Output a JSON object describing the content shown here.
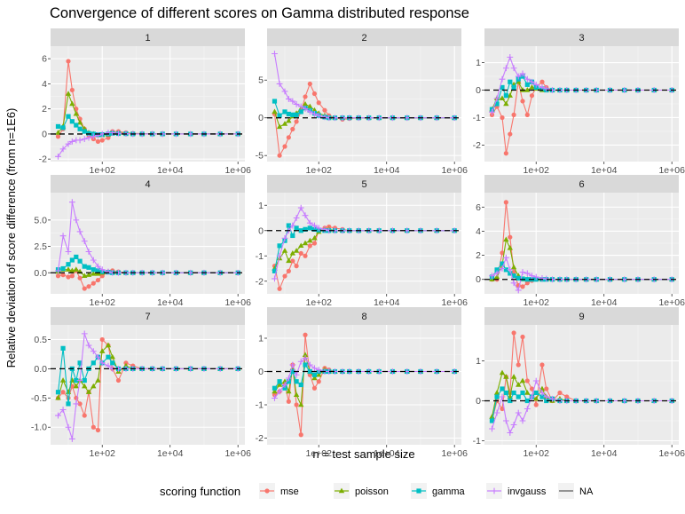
{
  "chart_data": {
    "type": "line",
    "title": "Convergence of different scores on Gamma distributed response",
    "xlabel": "n = test sample size",
    "ylabel": "Relative deviation of score difference (from n=1E6)",
    "x_scale": "log10",
    "x_ticks": [
      {
        "value": 100,
        "label": "1e+02"
      },
      {
        "value": 10000,
        "label": "1e+04"
      },
      {
        "value": 1000000,
        "label": "1e+06"
      }
    ],
    "reference_line": {
      "y": 0,
      "style": "dashed"
    },
    "legend": {
      "title": "scoring function",
      "position": "bottom",
      "entries": [
        {
          "name": "mse",
          "color": "#F8766D",
          "marker": "circle"
        },
        {
          "name": "poisson",
          "color": "#7CAE00",
          "marker": "triangle"
        },
        {
          "name": "gamma",
          "color": "#00BFC4",
          "marker": "square"
        },
        {
          "name": "invgauss",
          "color": "#C77CFF",
          "marker": "plus"
        },
        {
          "name": "NA",
          "color": "#555555",
          "marker": "none"
        }
      ]
    },
    "series_names": [
      "mse",
      "poisson",
      "gamma",
      "invgauss"
    ],
    "x_values": [
      5,
      7,
      10,
      13,
      17,
      22,
      30,
      40,
      55,
      75,
      100,
      150,
      200,
      300,
      500,
      800,
      1500,
      3000,
      6000,
      15000,
      40000,
      100000,
      300000,
      1000000
    ],
    "panels": [
      {
        "label": "1",
        "ylim": [
          -2.2,
          7
        ],
        "yticks": [
          -2,
          0,
          2,
          4,
          6
        ],
        "series": {
          "mse": [
            -0.2,
            0.4,
            5.8,
            3.5,
            2.0,
            1.2,
            0.4,
            -0.1,
            -0.4,
            -0.6,
            -0.5,
            -0.3,
            0.2,
            0.2,
            0.1,
            0.05,
            0.02,
            0.01,
            0,
            0,
            0,
            0,
            0,
            0
          ],
          "poisson": [
            0.1,
            0.6,
            3.2,
            2.4,
            1.6,
            0.9,
            0.4,
            0.1,
            0.0,
            -0.1,
            -0.1,
            -0.05,
            0.1,
            0.1,
            0.05,
            0.02,
            0,
            0,
            0,
            0,
            0,
            0,
            0,
            0
          ],
          "gamma": [
            0.6,
            0.5,
            1.4,
            1.0,
            0.7,
            0.4,
            0.2,
            0.05,
            0.0,
            -0.05,
            -0.05,
            0,
            0.05,
            0.03,
            0.02,
            0,
            0,
            0,
            0,
            0,
            0,
            0,
            0,
            0
          ],
          "invgauss": [
            -1.8,
            -1.2,
            -0.8,
            -0.6,
            -0.5,
            -0.5,
            -0.4,
            -0.3,
            -0.2,
            -0.1,
            0,
            0.1,
            0.1,
            0.05,
            0.02,
            0,
            0,
            0,
            0,
            0,
            0,
            0,
            0,
            0
          ]
        }
      },
      {
        "label": "2",
        "ylim": [
          -5.8,
          9.5
        ],
        "yticks": [
          -5,
          0,
          5
        ],
        "series": {
          "mse": [
            0.5,
            -5.0,
            -3.8,
            -2.6,
            -1.5,
            -0.5,
            0.8,
            2.8,
            4.5,
            3.2,
            2.0,
            1.0,
            0.3,
            0,
            -0.2,
            -0.1,
            0,
            0,
            0,
            0,
            0,
            0,
            0,
            0
          ],
          "poisson": [
            0.8,
            -1.2,
            -0.8,
            -0.4,
            0.2,
            0.6,
            1.2,
            1.8,
            1.5,
            1.0,
            0.6,
            0.3,
            0.1,
            0,
            0,
            0,
            0,
            0,
            0,
            0,
            0,
            0,
            0,
            0
          ],
          "gamma": [
            2.2,
            0.3,
            0.8,
            0.5,
            0.4,
            0.4,
            0.8,
            1.3,
            1.0,
            0.6,
            0.3,
            0.1,
            0,
            0,
            0,
            0,
            0,
            0,
            0,
            0,
            0,
            0,
            0,
            0
          ],
          "invgauss": [
            8.5,
            4.5,
            3.5,
            2.5,
            2.2,
            1.8,
            1.5,
            1.2,
            0.8,
            0.5,
            0.3,
            0.1,
            0,
            0,
            0,
            0,
            0,
            0,
            0,
            0,
            0,
            0,
            0,
            0
          ]
        }
      },
      {
        "label": "3",
        "ylim": [
          -2.6,
          1.6
        ],
        "yticks": [
          -2,
          -1,
          0,
          1
        ],
        "series": {
          "mse": [
            -0.9,
            -0.6,
            -1.0,
            -2.3,
            -1.6,
            -0.9,
            0.3,
            -0.4,
            -0.9,
            -0.2,
            0.1,
            0.3,
            0.1,
            0,
            0,
            0,
            0,
            0,
            0,
            0,
            0,
            0,
            0,
            0
          ],
          "poisson": [
            -0.7,
            -0.3,
            -0.3,
            -0.5,
            -0.2,
            0.2,
            0.3,
            0.0,
            0.0,
            0.1,
            0.05,
            0,
            0,
            0,
            0,
            0,
            0,
            0,
            0,
            0,
            0,
            0,
            0,
            0
          ],
          "gamma": [
            -0.7,
            -0.5,
            0.1,
            -0.2,
            0.3,
            0.1,
            0.4,
            0.5,
            0.2,
            0.3,
            0.1,
            0.05,
            0,
            0,
            0,
            0,
            0,
            0,
            0,
            0,
            0,
            0,
            0,
            0
          ],
          "invgauss": [
            -0.8,
            -0.3,
            0.4,
            0.8,
            1.2,
            0.8,
            0.5,
            0.6,
            0.4,
            0.3,
            0.2,
            0.1,
            0.05,
            0,
            0,
            0,
            0,
            0,
            0,
            0,
            0,
            0,
            0,
            0
          ]
        }
      },
      {
        "label": "4",
        "ylim": [
          -2.0,
          7.6
        ],
        "yticks": [
          0.0,
          2.5,
          5.0
        ],
        "series": {
          "mse": [
            -0.3,
            -0.2,
            -0.4,
            -0.3,
            0.2,
            -0.5,
            -1.5,
            -1.3,
            -1.0,
            -0.7,
            -0.3,
            0.1,
            0.2,
            0.1,
            0,
            0,
            0,
            0,
            0,
            0,
            0,
            0,
            0,
            0
          ],
          "poisson": [
            0.1,
            0.3,
            0.3,
            0.2,
            0.3,
            0.1,
            -0.3,
            -0.2,
            -0.1,
            -0.1,
            0,
            0.05,
            0.05,
            0,
            0,
            0,
            0,
            0,
            0,
            0,
            0,
            0,
            0,
            0
          ],
          "gamma": [
            0.3,
            0.4,
            0.8,
            1.2,
            1.5,
            1.1,
            0.6,
            0.5,
            0.3,
            0.2,
            0.1,
            0.05,
            0,
            0,
            0,
            0,
            0,
            0,
            0,
            0,
            0,
            0,
            0,
            0
          ],
          "invgauss": [
            0.2,
            3.5,
            2.0,
            6.7,
            5.0,
            3.9,
            3.0,
            2.0,
            1.2,
            0.6,
            0.3,
            0.1,
            0,
            0,
            0,
            0,
            0,
            0,
            0,
            0,
            0,
            0,
            0,
            0
          ]
        }
      },
      {
        "label": "5",
        "ylim": [
          -2.5,
          1.5
        ],
        "yticks": [
          -2,
          -1,
          0,
          1
        ],
        "series": {
          "mse": [
            -1.4,
            -2.3,
            -1.8,
            -1.6,
            -1.2,
            -1.4,
            -0.9,
            -1.0,
            -0.6,
            -0.5,
            0.0,
            0.1,
            0.15,
            0.1,
            0.05,
            0,
            0,
            0,
            0,
            0,
            0,
            0,
            0,
            0
          ],
          "poisson": [
            -1.5,
            -1.1,
            -0.8,
            -1.2,
            -0.9,
            -0.8,
            -0.6,
            -0.5,
            -0.4,
            -0.3,
            -0.05,
            0.05,
            0.05,
            0,
            0,
            0,
            0,
            0,
            0,
            0,
            0,
            0,
            0,
            0
          ],
          "gamma": [
            -1.6,
            -0.6,
            -0.4,
            0.2,
            -0.2,
            0.1,
            0.0,
            0.05,
            0.1,
            0.05,
            0.02,
            0,
            0,
            0,
            0,
            0,
            0,
            0,
            0,
            0,
            0,
            0,
            0,
            0
          ],
          "invgauss": [
            -1.9,
            -1.0,
            -0.3,
            0.0,
            0.2,
            0.5,
            0.9,
            0.6,
            0.3,
            0.2,
            0.1,
            0.05,
            0,
            0,
            0,
            0,
            0,
            0,
            0,
            0,
            0,
            0,
            0,
            0
          ]
        }
      },
      {
        "label": "6",
        "ylim": [
          -1.2,
          7.2
        ],
        "yticks": [
          0,
          2,
          4,
          6
        ],
        "series": {
          "mse": [
            0.0,
            0.0,
            2.2,
            6.4,
            3.5,
            0.6,
            -0.5,
            -0.6,
            -0.3,
            -0.1,
            0,
            0,
            0,
            0,
            0,
            0,
            0,
            0,
            0,
            0,
            0,
            0,
            0,
            0
          ],
          "poisson": [
            0.0,
            0.2,
            1.2,
            3.3,
            2.6,
            1.0,
            0.3,
            0.0,
            0.0,
            0.0,
            0,
            0,
            0,
            0,
            0,
            0,
            0,
            0,
            0,
            0,
            0,
            0,
            0,
            0
          ],
          "gamma": [
            0.2,
            0.8,
            1.3,
            0.8,
            0.5,
            0.3,
            0.1,
            0.05,
            0,
            0,
            0,
            0,
            0,
            0,
            0,
            0,
            0,
            0,
            0,
            0,
            0,
            0,
            0,
            0
          ],
          "invgauss": [
            0.3,
            0.5,
            0.9,
            1.8,
            0.8,
            -0.3,
            -0.9,
            0.6,
            0.5,
            0.3,
            0.2,
            0.1,
            0.05,
            0,
            0,
            0,
            0,
            0,
            0,
            0,
            0,
            0,
            0,
            0
          ]
        }
      },
      {
        "label": "7",
        "ylim": [
          -1.3,
          0.75
        ],
        "yticks": [
          -1.0,
          -0.5,
          0.0,
          0.5
        ],
        "series": {
          "mse": [
            -0.5,
            -0.4,
            -0.5,
            -0.3,
            -0.5,
            -0.6,
            -0.8,
            -0.4,
            -1.0,
            -1.05,
            0.5,
            0.4,
            0.0,
            -0.2,
            0.1,
            0.05,
            0,
            0,
            0,
            0,
            0,
            0,
            0,
            0
          ],
          "poisson": [
            -0.5,
            -0.2,
            -0.4,
            -0.2,
            -0.3,
            -0.2,
            -0.3,
            -0.4,
            -0.3,
            -0.2,
            0.3,
            0.4,
            0.2,
            -0.05,
            0.05,
            0,
            0,
            0,
            0,
            0,
            0,
            0,
            0,
            0
          ],
          "gamma": [
            -0.4,
            0.35,
            -0.6,
            0.0,
            -0.2,
            0.1,
            -0.2,
            0.0,
            0.1,
            0.2,
            0.1,
            0.2,
            0.1,
            0,
            0,
            0,
            0,
            0,
            0,
            0,
            0,
            0,
            0,
            0
          ],
          "invgauss": [
            -0.8,
            -0.7,
            -1.0,
            -1.2,
            -0.6,
            -0.2,
            0.6,
            0.4,
            0.3,
            0.2,
            0.1,
            0.05,
            0,
            0,
            0,
            0,
            0,
            0,
            0,
            0,
            0,
            0,
            0,
            0
          ]
        }
      },
      {
        "label": "8",
        "ylim": [
          -2.2,
          1.4
        ],
        "yticks": [
          -2,
          -1,
          0,
          1
        ],
        "series": {
          "mse": [
            -0.7,
            -0.6,
            -0.4,
            -0.9,
            0.2,
            -1.0,
            -1.9,
            1.1,
            -0.1,
            -0.5,
            -0.3,
            0.1,
            0.05,
            0,
            0,
            0,
            0,
            0,
            0,
            0,
            0,
            0,
            0,
            0
          ],
          "poisson": [
            -0.6,
            -0.4,
            -0.3,
            -0.6,
            0.1,
            -0.7,
            -1.0,
            0.5,
            0.0,
            -0.2,
            -0.1,
            0.05,
            0,
            0,
            0,
            0,
            0,
            0,
            0,
            0,
            0,
            0,
            0,
            0
          ],
          "gamma": [
            -0.5,
            -0.3,
            -0.5,
            -0.3,
            0.0,
            -0.3,
            -0.4,
            0.2,
            0.0,
            -0.1,
            0,
            0,
            0,
            0,
            0,
            0,
            0,
            0,
            0,
            0,
            0,
            0,
            0,
            0
          ],
          "invgauss": [
            -0.8,
            -0.6,
            -0.4,
            -0.2,
            0.2,
            -0.1,
            0.3,
            0.4,
            0.2,
            0.1,
            0.05,
            0,
            0,
            0,
            0,
            0,
            0,
            0,
            0,
            0,
            0,
            0,
            0,
            0
          ]
        }
      },
      {
        "label": "9",
        "ylim": [
          -1.1,
          1.9
        ],
        "yticks": [
          -1,
          0,
          1
        ],
        "series": {
          "mse": [
            -0.5,
            0.0,
            -0.2,
            0.6,
            0.2,
            1.7,
            0.9,
            1.6,
            0.5,
            0.3,
            -0.1,
            0.9,
            0.3,
            0.0,
            0.2,
            0.1,
            0.0,
            0,
            0,
            0,
            0,
            0,
            0,
            0
          ],
          "poisson": [
            -0.4,
            0.2,
            0.7,
            0.6,
            0.1,
            0.6,
            0.4,
            0.5,
            0.2,
            0.1,
            0.05,
            0.3,
            0.1,
            0.0,
            0.05,
            0,
            0,
            0,
            0,
            0,
            0,
            0,
            0,
            0
          ],
          "gamma": [
            -0.5,
            0.1,
            0.3,
            0.2,
            0.0,
            0.2,
            0.1,
            0.2,
            0.0,
            0.1,
            0.2,
            0.1,
            0.0,
            0.05,
            0,
            0,
            0,
            0,
            0,
            0,
            0,
            0,
            0,
            0
          ],
          "invgauss": [
            -0.7,
            -0.3,
            0.1,
            -0.5,
            -0.8,
            -0.6,
            -0.3,
            -0.5,
            -0.2,
            0.1,
            0.5,
            0.2,
            0.1,
            0.05,
            0,
            0,
            0,
            0,
            0,
            0,
            0,
            0,
            0,
            0
          ]
        }
      }
    ]
  }
}
